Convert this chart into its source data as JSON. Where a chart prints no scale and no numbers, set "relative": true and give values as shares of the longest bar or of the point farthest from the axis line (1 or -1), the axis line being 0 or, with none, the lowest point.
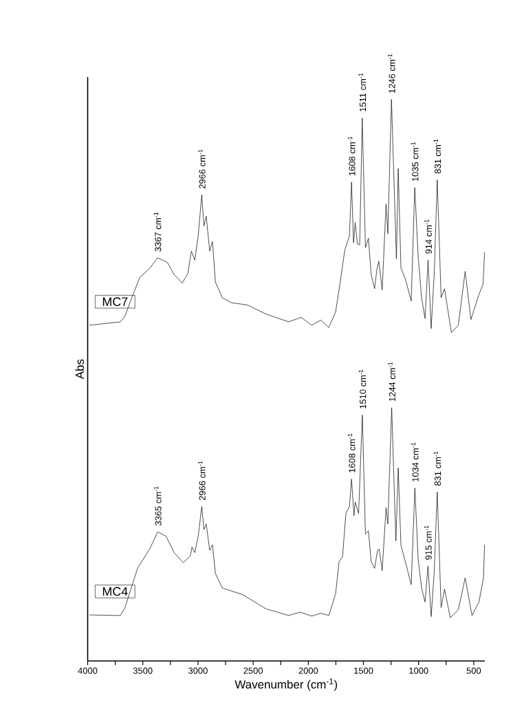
{
  "chart_data": {
    "type": "line",
    "relative": true,
    "xlabel": "Wavenumber (cm$^{-1}$)",
    "ylabel": "Abs",
    "xlim": [
      4000,
      400
    ],
    "xticks": [
      4000,
      {
        "value": 3750,
        "label": null
      },
      3500,
      {
        "value": 3250,
        "label": null
      },
      3000,
      {
        "value": 2750,
        "label": null
      },
      2500,
      {
        "value": 2250,
        "label": null
      },
      2000,
      {
        "value": 1750,
        "label": null
      },
      1500,
      {
        "value": 1250,
        "label": null
      },
      1000,
      {
        "value": 750,
        "label": null
      },
      500
    ],
    "marker": "none",
    "line_style": "solid",
    "legend": false,
    "series": [
      {
        "name": "MC7",
        "color": "#000000",
        "x": [
          3984,
          3704,
          3662,
          3600,
          3528,
          3434,
          3367,
          3278,
          3216,
          3143,
          3092,
          3060,
          3029,
          2998,
          2966,
          2946,
          2925,
          2894,
          2869,
          2842,
          2780,
          2697,
          2551,
          2385,
          2178,
          2064,
          1970,
          1887,
          1814,
          1752,
          1721,
          1669,
          1627,
          1608,
          1590,
          1575,
          1555,
          1534,
          1511,
          1482,
          1455,
          1430,
          1399,
          1378,
          1361,
          1330,
          1295,
          1279,
          1246,
          1201,
          1185,
          1160,
          1118,
          1067,
          1035,
          1004,
          973,
          942,
          914,
          886,
          858,
          831,
          796,
          765,
          703,
          640,
          578,
          526,
          453,
          416,
          402
        ],
        "values": [
          0.598,
          0.604,
          0.614,
          0.647,
          0.683,
          0.7,
          0.718,
          0.71,
          0.688,
          0.673,
          0.69,
          0.73,
          0.714,
          0.757,
          0.83,
          0.775,
          0.792,
          0.73,
          0.747,
          0.675,
          0.647,
          0.638,
          0.634,
          0.618,
          0.604,
          0.612,
          0.598,
          0.607,
          0.594,
          0.622,
          0.661,
          0.732,
          0.757,
          0.853,
          0.745,
          0.781,
          0.743,
          0.741,
          0.967,
          0.736,
          0.753,
          0.688,
          0.663,
          0.698,
          0.712,
          0.661,
          0.814,
          0.761,
          1.0,
          0.716,
          0.877,
          0.7,
          0.679,
          0.641,
          0.843,
          0.72,
          0.647,
          0.61,
          0.714,
          0.592,
          0.692,
          0.857,
          0.647,
          0.663,
          0.585,
          0.598,
          0.694,
          0.608,
          0.653,
          0.671,
          0.728
        ]
      },
      {
        "name": "MC4",
        "color": "#000000",
        "x": [
          3984,
          3704,
          3662,
          3548,
          3434,
          3365,
          3289,
          3216,
          3133,
          3070,
          3054,
          3029,
          2998,
          2966,
          2946,
          2925,
          2894,
          2869,
          2842,
          2780,
          2593,
          2385,
          2178,
          2074,
          1970,
          1887,
          1814,
          1752,
          1721,
          1690,
          1659,
          1627,
          1608,
          1586,
          1575,
          1544,
          1510,
          1482,
          1455,
          1430,
          1399,
          1372,
          1357,
          1330,
          1295,
          1279,
          1244,
          1206,
          1185,
          1160,
          1118,
          1067,
          1034,
          1004,
          973,
          942,
          915,
          886,
          858,
          831,
          796,
          765,
          713,
          640,
          578,
          516,
          453,
          412,
          402
        ],
        "values": [
          0.082,
          0.081,
          0.095,
          0.165,
          0.201,
          0.23,
          0.222,
          0.193,
          0.175,
          0.187,
          0.203,
          0.193,
          0.222,
          0.275,
          0.234,
          0.244,
          0.197,
          0.207,
          0.156,
          0.13,
          0.118,
          0.093,
          0.081,
          0.087,
          0.08,
          0.085,
          0.081,
          0.12,
          0.177,
          0.185,
          0.263,
          0.275,
          0.324,
          0.259,
          0.283,
          0.263,
          0.438,
          0.226,
          0.232,
          0.177,
          0.165,
          0.197,
          0.199,
          0.161,
          0.273,
          0.244,
          0.451,
          0.214,
          0.344,
          0.206,
          0.175,
          0.136,
          0.308,
          0.181,
          0.13,
          0.105,
          0.169,
          0.079,
          0.161,
          0.301,
          0.095,
          0.128,
          0.077,
          0.091,
          0.148,
          0.081,
          0.105,
          0.148,
          0.207
        ]
      }
    ],
    "annotations": [
      {
        "text": "3367 cm$^{-1}$",
        "x": 3367,
        "y": 0.718
      },
      {
        "text": "2966 cm$^{-1}$",
        "x": 2966,
        "y": 0.83
      },
      {
        "text": "1608 cm$^{-1}$",
        "x": 1608,
        "y": 0.853
      },
      {
        "text": "1511 cm$^{-1}$",
        "x": 1511,
        "y": 0.967
      },
      {
        "text": "1246 cm$^{-1}$",
        "x": 1246,
        "y": 1.0
      },
      {
        "text": "1035 cm$^{-1}$",
        "x": 1035,
        "y": 0.843
      },
      {
        "text": "914 cm$^{-1}$",
        "x": 914,
        "y": 0.714
      },
      {
        "text": "831 cm$^{-1}$",
        "x": 831,
        "y": 0.857
      },
      {
        "text": "3365 cm$^{-1}$",
        "x": 3365,
        "y": 0.23
      },
      {
        "text": "2966 cm$^{-1}$",
        "x": 2966,
        "y": 0.275
      },
      {
        "text": "1608 cm$^{-1}$",
        "x": 1608,
        "y": 0.324
      },
      {
        "text": "1510 cm$^{-1}$",
        "x": 1510,
        "y": 0.438
      },
      {
        "text": "1244 cm$^{-1}$",
        "x": 1244,
        "y": 0.451
      },
      {
        "text": "1034 cm$^{-1}$",
        "x": 1034,
        "y": 0.308
      },
      {
        "text": "915 cm$^{-1}$",
        "x": 915,
        "y": 0.169
      },
      {
        "text": "831 cm$^{-1}$",
        "x": 831,
        "y": 0.301
      }
    ]
  }
}
